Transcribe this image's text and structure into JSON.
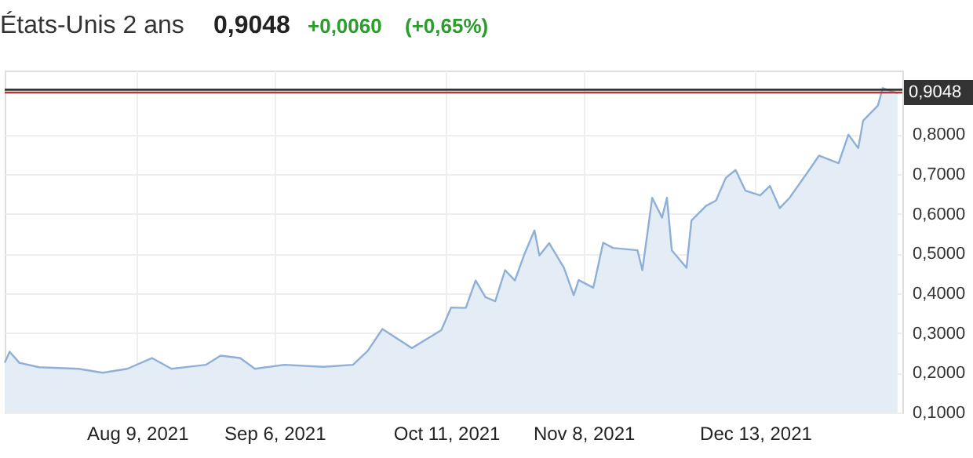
{
  "chart_data": {
    "type": "area",
    "title": "États-Unis 2 ans",
    "annotations": [
      "0,9048",
      "+0,0060",
      "(+0,65%)"
    ],
    "x": [
      "2021-07-13",
      "2021-07-14",
      "2021-07-16",
      "2021-07-20",
      "2021-07-28",
      "2021-08-02",
      "2021-08-07",
      "2021-08-12",
      "2021-08-16",
      "2021-08-23",
      "2021-08-26",
      "2021-08-30",
      "2021-09-02",
      "2021-09-08",
      "2021-09-16",
      "2021-09-22",
      "2021-09-25",
      "2021-09-28",
      "2021-10-04",
      "2021-10-10",
      "2021-10-12",
      "2021-10-15",
      "2021-10-17",
      "2021-10-19",
      "2021-10-21",
      "2021-10-23",
      "2021-10-25",
      "2021-10-27",
      "2021-10-29",
      "2021-10-30",
      "2021-11-01",
      "2021-11-04",
      "2021-11-06",
      "2021-11-07",
      "2021-11-10",
      "2021-11-12",
      "2021-11-14",
      "2021-11-19",
      "2021-11-20",
      "2021-11-22",
      "2021-11-24",
      "2021-11-25",
      "2021-11-26",
      "2021-11-29",
      "2021-11-30",
      "2021-12-03",
      "2021-12-05",
      "2021-12-07",
      "2021-12-09",
      "2021-12-11",
      "2021-12-14",
      "2021-12-16",
      "2021-12-18",
      "2021-12-20",
      "2021-12-24",
      "2021-12-26",
      "2021-12-30",
      "2022-01-01",
      "2022-01-03",
      "2022-01-04",
      "2022-01-07",
      "2022-01-08",
      "2022-01-11"
    ],
    "series": [
      {
        "color": "#8fb0d6",
        "values": [
          0.225,
          0.253,
          0.225,
          0.214,
          0.21,
          0.2,
          0.21,
          0.237,
          0.21,
          0.22,
          0.243,
          0.237,
          0.21,
          0.22,
          0.215,
          0.22,
          0.255,
          0.31,
          0.262,
          0.307,
          0.364,
          0.363,
          0.432,
          0.39,
          0.38,
          0.458,
          0.432,
          0.5,
          0.558,
          0.495,
          0.526,
          0.464,
          0.395,
          0.433,
          0.414,
          0.527,
          0.514,
          0.508,
          0.458,
          0.64,
          0.59,
          0.64,
          0.508,
          0.464,
          0.583,
          0.62,
          0.633,
          0.69,
          0.71,
          0.658,
          0.646,
          0.67,
          0.614,
          0.64,
          0.71,
          0.746,
          0.727,
          0.799,
          0.765,
          0.834,
          0.872,
          0.916,
          0.903
        ]
      }
    ],
    "xlim": [
      "2021-07-13",
      "2022-01-12"
    ],
    "xticks": [
      {
        "value": "2021-08-09",
        "label": "Aug 9, 2021"
      },
      {
        "value": "2021-09-06",
        "label": "Sep 6, 2021"
      },
      {
        "value": "2021-10-11",
        "label": "Oct 11, 2021"
      },
      {
        "value": "2021-11-08",
        "label": "Nov 8, 2021"
      },
      {
        "value": "2021-12-13",
        "label": "Dec 13, 2021"
      }
    ],
    "ylim": [
      0.1,
      0.96
    ],
    "yticks": [
      {
        "value": 0.1,
        "label": "0,1000"
      },
      {
        "value": 0.2,
        "label": "0,2000"
      },
      {
        "value": 0.3,
        "label": "0,3000"
      },
      {
        "value": 0.4,
        "label": "0,4000"
      },
      {
        "value": 0.5,
        "label": "0,5000"
      },
      {
        "value": 0.6,
        "label": "0,6000"
      },
      {
        "value": 0.7,
        "label": "0,7000"
      },
      {
        "value": 0.8,
        "label": "0,8000"
      }
    ],
    "ref_lines": [
      {
        "axis": "y",
        "value": 0.912,
        "color": "#333333"
      },
      {
        "axis": "y",
        "value": 0.9048,
        "label": "0,9048",
        "color": "#b03a3a"
      }
    ],
    "grid": true
  }
}
